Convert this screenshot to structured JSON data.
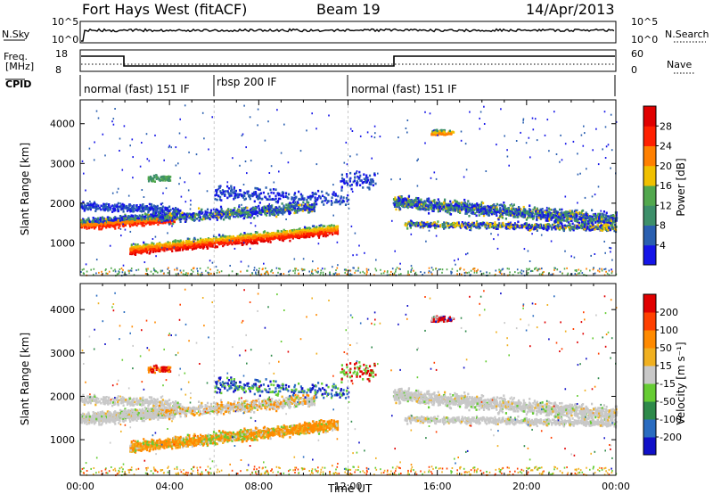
{
  "header": {
    "station": "Fort Hays West (fitACF)",
    "beam": "Beam 19",
    "date": "14/Apr/2013"
  },
  "status_panels": {
    "nsky": {
      "label": "N.Sky",
      "ticks": [
        "10^5",
        "10^0"
      ],
      "right_label": "N.Search",
      "right_ticks": [
        "10^5",
        "10^0"
      ]
    },
    "freq": {
      "label_line1": "Freq.",
      "label_line2": "[MHz]",
      "ticks": [
        "18",
        "8"
      ],
      "right_label": "Nave",
      "right_ticks": [
        "60",
        "0"
      ]
    },
    "cpid": {
      "label": "CPID",
      "segments": [
        {
          "label": "normal (fast) 151 IF",
          "start_hour": 0,
          "end_hour": 6
        },
        {
          "label": "rbsp 200 IF",
          "start_hour": 6,
          "end_hour": 12
        },
        {
          "label": "normal (fast) 151 IF",
          "start_hour": 12,
          "end_hour": 24
        }
      ]
    }
  },
  "chart_data": [
    {
      "type": "heatmap",
      "name": "power",
      "ylabel": "Slant Range [km]",
      "yticks": [
        "1000",
        "2000",
        "3000",
        "4000"
      ],
      "ylim": [
        180,
        4600
      ],
      "xlim_hours": [
        0,
        24
      ],
      "colorbar": {
        "label": "Power [dB]",
        "ticks": [
          "4",
          "8",
          "12",
          "16",
          "20",
          "24",
          "28"
        ],
        "colors": [
          "#1515e8",
          "#2a5fb0",
          "#3d8f6a",
          "#52a84e",
          "#f0c000",
          "#ff8000",
          "#ff2000",
          "#e00000"
        ]
      }
    },
    {
      "type": "heatmap",
      "name": "velocity",
      "ylabel": "Slant Range [km]",
      "yticks": [
        "1000",
        "2000",
        "3000",
        "4000"
      ],
      "ylim": [
        180,
        4600
      ],
      "xlim_hours": [
        0,
        24
      ],
      "xlabel": "Time UT",
      "xticks": [
        "00:00",
        "04:00",
        "08:00",
        "12:00",
        "16:00",
        "20:00",
        "00:00"
      ],
      "colorbar": {
        "label": "Velocity [m s⁻¹]",
        "ticks": [
          "200",
          "100",
          "50",
          "15",
          "-15",
          "-50",
          "-100",
          "-200"
        ],
        "colors": [
          "#1010c8",
          "#2a6cc0",
          "#2e8a4a",
          "#66cc33",
          "#c8c8c8",
          "#f0b020",
          "#ff8a00",
          "#ff4000",
          "#e00000"
        ]
      }
    }
  ]
}
